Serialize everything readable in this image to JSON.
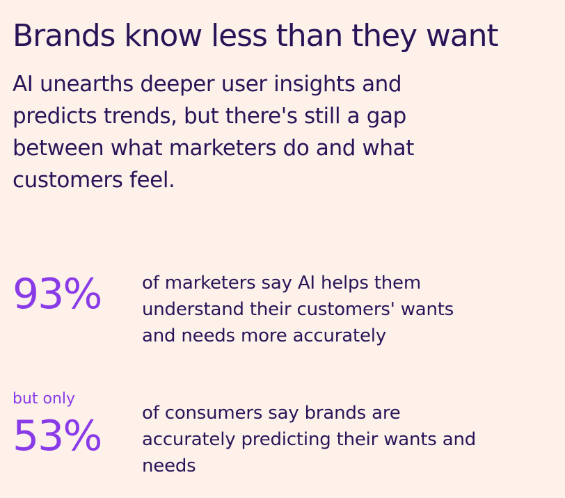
{
  "headline": "Brands know less than they want",
  "intro": "AI unearths deeper user insights and predicts trends, but there's still a gap between what marketers do and what customers feel.",
  "stats": [
    {
      "qualifier": "",
      "value": "93%",
      "description": "of marketers say AI helps them understand their customers' wants and needs more accurately"
    },
    {
      "qualifier": "but only",
      "value": "53%",
      "description": "of consumers say brands are accurately predicting their wants and needs"
    }
  ],
  "colors": {
    "background": "#fdf1ea",
    "text": "#2a1458",
    "accent": "#8a3be8"
  }
}
